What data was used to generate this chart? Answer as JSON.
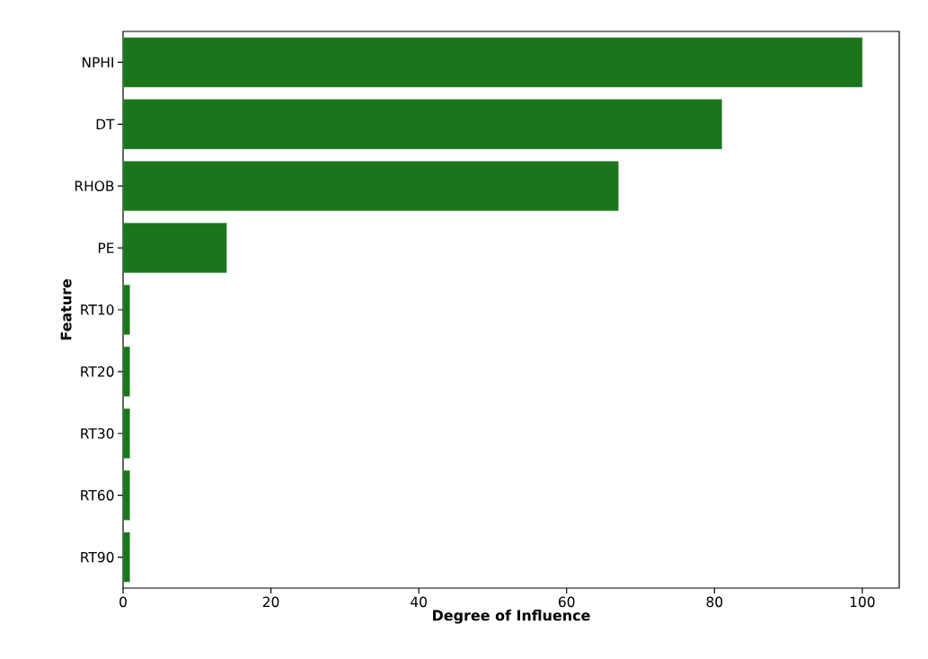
{
  "chart_data": {
    "type": "bar",
    "orientation": "horizontal",
    "xlabel": "Degree of Influence",
    "ylabel": "Feature",
    "categories": [
      "NPHI",
      "DT",
      "RHOB",
      "PE",
      "RT10",
      "RT20",
      "RT30",
      "RT60",
      "RT90"
    ],
    "values": [
      100,
      81,
      67,
      14,
      0.9,
      0.9,
      0.9,
      0.9,
      0.9
    ],
    "color": "#1b751b",
    "xlim": [
      0,
      105
    ],
    "xticks": [
      0,
      20,
      40,
      60,
      80,
      100
    ]
  }
}
